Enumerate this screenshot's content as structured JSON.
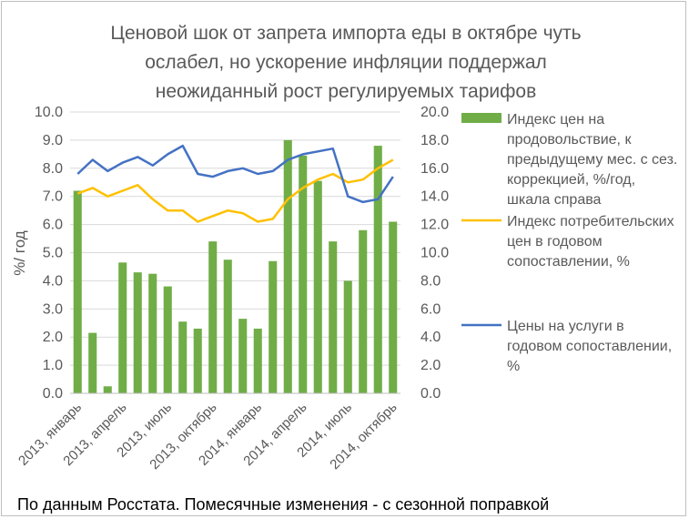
{
  "chart_data": {
    "type": "bar+line",
    "title_lines": [
      "Ценовой шок от запрета импорта еды в октябре чуть",
      "ослабел, но ускорение инфляции поддержал",
      "неожиданный рост регулируемых тарифов"
    ],
    "ylabel": "%/ год",
    "ylim_left": [
      0,
      10
    ],
    "ylim_right": [
      0,
      20
    ],
    "yticks_left": [
      "0.0",
      "1.0",
      "2.0",
      "3.0",
      "4.0",
      "5.0",
      "6.0",
      "7.0",
      "8.0",
      "9.0",
      "10.0"
    ],
    "yticks_right": [
      "0.0",
      "2.0",
      "4.0",
      "6.0",
      "8.0",
      "10.0",
      "12.0",
      "14.0",
      "16.0",
      "18.0",
      "20.0"
    ],
    "x_tick_labels": [
      "2013, январь",
      "2013, апрель",
      "2013, июль",
      "2013, октябрь",
      "2014, январь",
      "2014, апрель",
      "2014, июль",
      "2014, октябрь"
    ],
    "n_points": 22,
    "series": [
      {
        "name": "Индекс цен на продовольствие, к предыдущему мес. с сез. коррекцией, %/год, шкала справа",
        "kind": "bar",
        "axis": "right",
        "color": "#70ad47",
        "values": [
          14.4,
          4.3,
          0.5,
          9.3,
          8.6,
          8.5,
          7.6,
          5.1,
          4.6,
          10.8,
          9.5,
          5.3,
          4.6,
          9.4,
          18.0,
          16.9,
          15.1,
          10.8,
          8.0,
          11.6,
          17.6,
          12.2
        ]
      },
      {
        "name": "Индекс потребительских цен в годовом сопоставлении, %",
        "kind": "line",
        "axis": "left",
        "color": "#ffc000",
        "values": [
          7.1,
          7.3,
          7.0,
          7.2,
          7.4,
          6.9,
          6.5,
          6.5,
          6.1,
          6.3,
          6.5,
          6.4,
          6.1,
          6.2,
          6.9,
          7.3,
          7.6,
          7.8,
          7.5,
          7.6,
          8.0,
          8.3
        ]
      },
      {
        "name": "Цены на услуги в годовом сопоставлении, %",
        "kind": "line",
        "axis": "left",
        "color": "#4472c4",
        "values": [
          7.8,
          8.3,
          7.9,
          8.2,
          8.4,
          8.1,
          8.5,
          8.8,
          7.8,
          7.7,
          7.9,
          8.0,
          7.8,
          7.9,
          8.3,
          8.5,
          8.6,
          8.7,
          7.0,
          6.8,
          6.9,
          7.7
        ]
      }
    ],
    "legend_position": "right",
    "grid": true,
    "footnote": "По данным Росстата. Помесячные изменения - с сезонной поправкой"
  }
}
